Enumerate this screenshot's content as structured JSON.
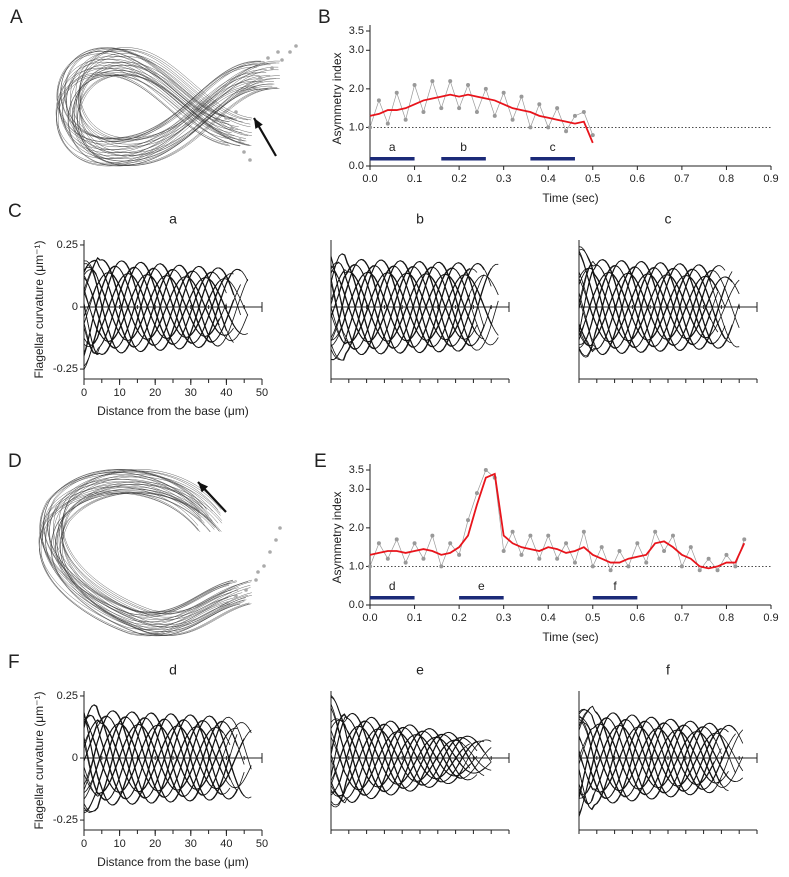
{
  "panel_labels": [
    "A",
    "B",
    "C",
    "D",
    "E",
    "F"
  ],
  "chart_data": [
    {
      "type": "line",
      "xlabel": "Time (sec)",
      "ylabel": "Asymmetry index",
      "xlim": [
        0,
        0.9
      ],
      "ylim": [
        0,
        3.5
      ],
      "xticks": [
        {
          "value": 0,
          "label": "0.0"
        },
        0.1,
        0.2,
        0.3,
        0.4,
        0.5,
        0.6,
        0.7,
        0.8,
        0.9
      ],
      "yticks": [
        {
          "value": 0,
          "label": "0.0"
        },
        {
          "value": 1,
          "label": "1.0"
        },
        {
          "value": 2,
          "label": "2.0"
        },
        {
          "value": 3,
          "label": "3.0"
        },
        3.5
      ],
      "reference_line": 1,
      "x": [
        0,
        0.02,
        0.04,
        0.06,
        0.08,
        0.1,
        0.12,
        0.14,
        0.16,
        0.18,
        0.2,
        0.22,
        0.24,
        0.26,
        0.28,
        0.3,
        0.32,
        0.34,
        0.36,
        0.38,
        0.4,
        0.42,
        0.44,
        0.46,
        0.48,
        0.5
      ],
      "series": [
        {
          "color": "#999999",
          "marker": true,
          "values": [
            1.0,
            1.7,
            1.1,
            1.9,
            1.2,
            2.1,
            1.4,
            2.2,
            1.5,
            2.2,
            1.5,
            2.1,
            1.4,
            2.0,
            1.3,
            1.9,
            1.2,
            1.8,
            1.0,
            1.6,
            1.0,
            1.5,
            0.9,
            1.3,
            1.4,
            0.8
          ]
        },
        {
          "color": "#e8141b",
          "marker": false,
          "values": [
            1.3,
            1.35,
            1.45,
            1.45,
            1.5,
            1.6,
            1.7,
            1.75,
            1.8,
            1.85,
            1.8,
            1.85,
            1.8,
            1.75,
            1.7,
            1.6,
            1.5,
            1.45,
            1.4,
            1.3,
            1.25,
            1.2,
            1.15,
            1.1,
            1.15,
            0.6
          ]
        }
      ],
      "interval_color": "#1b2a78",
      "intervals": [
        {
          "label": "a",
          "start": 0,
          "end": 0.1
        },
        {
          "label": "b",
          "start": 0.16,
          "end": 0.26
        },
        {
          "label": "c",
          "start": 0.36,
          "end": 0.46
        }
      ]
    },
    {
      "type": "waveform",
      "title": "a",
      "xlabel": "Distance from the base (μm)",
      "ylabel": "Flagellar curvature (μm⁻¹)",
      "xlim": [
        0,
        50
      ],
      "ylim": [
        -0.29,
        0.27
      ],
      "xticks": [
        0,
        10,
        20,
        30,
        40,
        50
      ],
      "yticks": [
        -0.25,
        0,
        0.25
      ]
    },
    {
      "type": "waveform",
      "title": "b",
      "xlim": [
        0,
        50
      ],
      "ylim": [
        -0.29,
        0.27
      ]
    },
    {
      "type": "waveform",
      "title": "c",
      "xlim": [
        0,
        50
      ],
      "ylim": [
        -0.29,
        0.27
      ]
    },
    {
      "type": "line",
      "xlabel": "Time (sec)",
      "ylabel": "Asymmetry index",
      "xlim": [
        0,
        0.9
      ],
      "ylim": [
        0,
        3.5
      ],
      "xticks": [
        {
          "value": 0,
          "label": "0.0"
        },
        0.1,
        0.2,
        0.3,
        0.4,
        0.5,
        0.6,
        0.7,
        0.8,
        0.9
      ],
      "yticks": [
        {
          "value": 0,
          "label": "0.0"
        },
        {
          "value": 1,
          "label": "1.0"
        },
        {
          "value": 2,
          "label": "2.0"
        },
        {
          "value": 3,
          "label": "3.0"
        },
        3.5
      ],
      "reference_line": 1,
      "x": [
        0,
        0.02,
        0.04,
        0.06,
        0.08,
        0.1,
        0.12,
        0.14,
        0.16,
        0.18,
        0.2,
        0.22,
        0.24,
        0.26,
        0.28,
        0.3,
        0.32,
        0.34,
        0.36,
        0.38,
        0.4,
        0.42,
        0.44,
        0.46,
        0.48,
        0.5,
        0.52,
        0.54,
        0.56,
        0.58,
        0.6,
        0.62,
        0.64,
        0.66,
        0.68,
        0.7,
        0.72,
        0.74,
        0.76,
        0.78,
        0.8,
        0.82,
        0.84
      ],
      "series": [
        {
          "color": "#999999",
          "marker": true,
          "values": [
            1.0,
            1.6,
            1.2,
            1.7,
            1.1,
            1.6,
            1.2,
            1.8,
            1.0,
            1.6,
            1.3,
            2.2,
            2.9,
            3.5,
            3.3,
            1.4,
            1.9,
            1.3,
            1.8,
            1.2,
            1.8,
            1.2,
            1.6,
            1.1,
            1.9,
            1.0,
            1.5,
            0.9,
            1.4,
            1.0,
            1.6,
            1.1,
            1.9,
            1.4,
            1.8,
            1.0,
            1.5,
            0.9,
            1.2,
            0.9,
            1.3,
            1.0,
            1.7
          ]
        },
        {
          "color": "#e8141b",
          "marker": false,
          "values": [
            1.3,
            1.35,
            1.4,
            1.4,
            1.35,
            1.4,
            1.45,
            1.4,
            1.3,
            1.35,
            1.5,
            1.8,
            2.6,
            3.3,
            3.4,
            1.8,
            1.6,
            1.5,
            1.45,
            1.4,
            1.5,
            1.45,
            1.35,
            1.4,
            1.5,
            1.3,
            1.2,
            1.1,
            1.1,
            1.2,
            1.25,
            1.3,
            1.6,
            1.65,
            1.5,
            1.3,
            1.2,
            1.0,
            0.95,
            1.0,
            1.1,
            1.1,
            1.6
          ]
        }
      ],
      "interval_color": "#1b2a78",
      "intervals": [
        {
          "label": "d",
          "start": 0,
          "end": 0.1
        },
        {
          "label": "e",
          "start": 0.2,
          "end": 0.3
        },
        {
          "label": "f",
          "start": 0.5,
          "end": 0.6
        }
      ]
    },
    {
      "type": "waveform",
      "title": "d",
      "xlabel": "Distance from the base (μm)",
      "ylabel": "Flagellar curvature (μm⁻¹)",
      "xlim": [
        0,
        50
      ],
      "ylim": [
        -0.29,
        0.27
      ],
      "xticks": [
        0,
        10,
        20,
        30,
        40,
        50
      ],
      "yticks": [
        -0.25,
        0,
        0.25
      ]
    },
    {
      "type": "waveform",
      "title": "e",
      "xlim": [
        0,
        50
      ],
      "ylim": [
        -0.29,
        0.27
      ]
    },
    {
      "type": "waveform",
      "title": "f",
      "xlim": [
        0,
        50
      ],
      "ylim": [
        -0.29,
        0.27
      ]
    }
  ]
}
